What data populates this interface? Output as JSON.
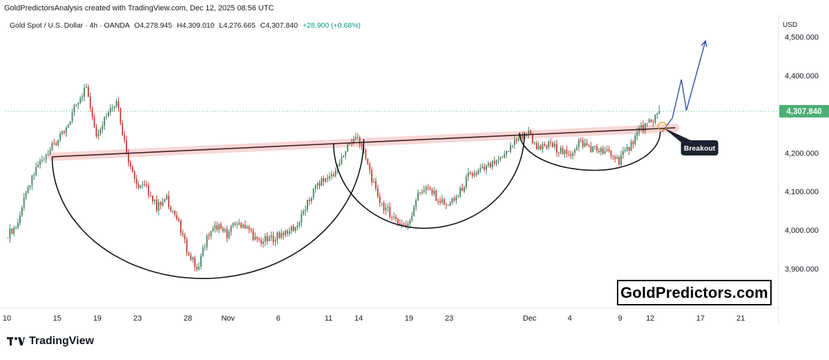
{
  "attribution": "GoldPredictorsAnalysis created with TradingView.com, Dec 12, 2025 08:56 UTC",
  "legend": {
    "symbol": "Gold Spot / U.S. Dollar · 4h · OANDA",
    "open": "O4,278.945",
    "high": "H4,309.010",
    "low": "L4,276.665",
    "close": "C4,307.840",
    "change": "+28.900 (+0.68%)"
  },
  "currency": "USD",
  "watermark": "GoldPredictors.com",
  "footer": {
    "brand": "TradingView"
  },
  "colors": {
    "up": "#3e7f5c",
    "down": "#c0392b",
    "price_tag": "#4caf73",
    "arrow": "#2b4fa0",
    "neckline_glow": "#f8c9c9"
  },
  "chart_data": {
    "type": "candlestick",
    "title": "Gold Spot / U.S. Dollar · 4h · OANDA",
    "ylim": [
      3800,
      4560
    ],
    "y_ticks": [
      {
        "value": 3900,
        "label": "3,900.000"
      },
      {
        "value": 4000,
        "label": "4,000.000"
      },
      {
        "value": 4100,
        "label": "4,100.000"
      },
      {
        "value": 4200,
        "label": "4,200.000"
      },
      {
        "value": 4300,
        "label": "4,300.000"
      },
      {
        "value": 4400,
        "label": "4,400.000"
      },
      {
        "value": 4500,
        "label": "4,500.000"
      }
    ],
    "x_ticks": [
      {
        "x": 0,
        "label": "10"
      },
      {
        "x": 5,
        "label": "15"
      },
      {
        "x": 9,
        "label": "19"
      },
      {
        "x": 13,
        "label": "23"
      },
      {
        "x": 18,
        "label": "28"
      },
      {
        "x": 22,
        "label": "Nov"
      },
      {
        "x": 27,
        "label": "6"
      },
      {
        "x": 32,
        "label": "11"
      },
      {
        "x": 35,
        "label": "14"
      },
      {
        "x": 40,
        "label": "19"
      },
      {
        "x": 44,
        "label": "23"
      },
      {
        "x": 52,
        "label": "Dec"
      },
      {
        "x": 56,
        "label": "4"
      },
      {
        "x": 61,
        "label": "9"
      },
      {
        "x": 64,
        "label": "12"
      },
      {
        "x": 69,
        "label": "17"
      },
      {
        "x": 73,
        "label": "21"
      }
    ],
    "last_price": {
      "value": 4307.84,
      "label": "4,307.840"
    },
    "closes": [
      [
        0,
        3985
      ],
      [
        1,
        4010
      ],
      [
        2,
        4090
      ],
      [
        3,
        4160
      ],
      [
        4,
        4200
      ],
      [
        5,
        4225
      ],
      [
        6,
        4260
      ],
      [
        7,
        4330
      ],
      [
        8,
        4370
      ],
      [
        9,
        4250
      ],
      [
        10,
        4300
      ],
      [
        11,
        4340
      ],
      [
        12,
        4200
      ],
      [
        13,
        4120
      ],
      [
        14,
        4110
      ],
      [
        15,
        4060
      ],
      [
        16,
        4080
      ],
      [
        17,
        4030
      ],
      [
        18,
        3950
      ],
      [
        19,
        3900
      ],
      [
        20,
        3980
      ],
      [
        21,
        4010
      ],
      [
        22,
        3990
      ],
      [
        23,
        4020
      ],
      [
        24,
        4010
      ],
      [
        25,
        3970
      ],
      [
        26,
        3975
      ],
      [
        27,
        3985
      ],
      [
        28,
        4000
      ],
      [
        29,
        4010
      ],
      [
        30,
        4070
      ],
      [
        31,
        4120
      ],
      [
        32,
        4135
      ],
      [
        33,
        4160
      ],
      [
        34,
        4220
      ],
      [
        35,
        4240
      ],
      [
        36,
        4170
      ],
      [
        37,
        4080
      ],
      [
        38,
        4050
      ],
      [
        39,
        4020
      ],
      [
        40,
        4010
      ],
      [
        41,
        4100
      ],
      [
        42,
        4110
      ],
      [
        43,
        4080
      ],
      [
        44,
        4060
      ],
      [
        45,
        4090
      ],
      [
        46,
        4140
      ],
      [
        47,
        4150
      ],
      [
        48,
        4165
      ],
      [
        49,
        4175
      ],
      [
        50,
        4210
      ],
      [
        51,
        4240
      ],
      [
        52,
        4250
      ],
      [
        53,
        4210
      ],
      [
        54,
        4220
      ],
      [
        55,
        4210
      ],
      [
        56,
        4190
      ],
      [
        57,
        4230
      ],
      [
        58,
        4215
      ],
      [
        59,
        4205
      ],
      [
        60,
        4200
      ],
      [
        61,
        4180
      ],
      [
        62,
        4215
      ],
      [
        63,
        4260
      ],
      [
        64,
        4275
      ],
      [
        65,
        4307.84
      ]
    ],
    "pattern": {
      "neckline": [
        [
          4.5,
          4190
        ],
        [
          66.5,
          4265
        ]
      ],
      "cups": [
        {
          "name": "cup-1",
          "from": [
            4.5,
            4190
          ],
          "bottom": [
            19.5,
            3875
          ],
          "to": [
            35.5,
            4235
          ]
        },
        {
          "name": "cup-2",
          "from": [
            32.5,
            4225
          ],
          "bottom": [
            41.5,
            4005
          ],
          "to": [
            51.5,
            4253
          ]
        },
        {
          "name": "cup-3",
          "from": [
            51.0,
            4252
          ],
          "bottom": [
            58.5,
            4155
          ],
          "to": [
            65.0,
            4255
          ]
        }
      ],
      "projection": [
        [
          65.2,
          4255
        ],
        [
          66.2,
          4290
        ],
        [
          67.1,
          4390
        ],
        [
          67.6,
          4310
        ],
        [
          69.5,
          4490
        ]
      ],
      "annotation": {
        "text": "Breakout",
        "point": [
          65.2,
          4265
        ]
      }
    }
  }
}
